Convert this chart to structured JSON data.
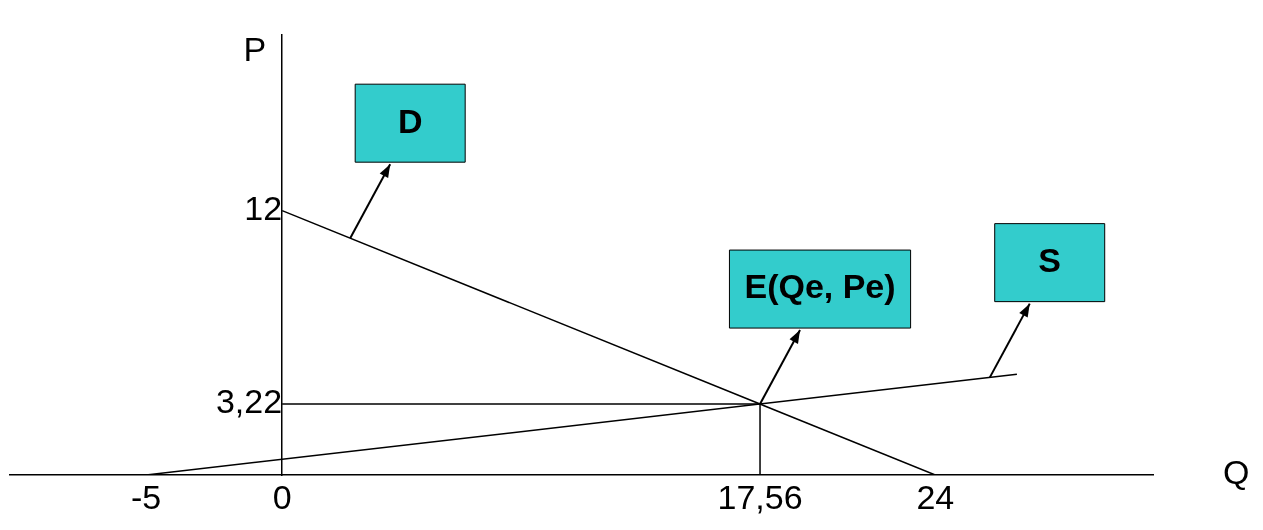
{
  "chart_data": {
    "type": "line",
    "xlabel": "Q",
    "ylabel": "P",
    "xlim": [
      -10,
      32
    ],
    "ylim": [
      0,
      20
    ],
    "xticks": [
      -5,
      0,
      {
        "value": 17.56,
        "label": "17,56"
      },
      24
    ],
    "yticks": [
      {
        "value": 3.22,
        "label": "3,22"
      },
      12
    ],
    "series": [
      {
        "color": "#000000",
        "x": [
          0,
          24
        ],
        "values": [
          12,
          0
        ]
      },
      {
        "color": "#000000",
        "x": [
          -5,
          27
        ],
        "values": [
          0,
          4.57
        ]
      },
      {
        "color": "#000000",
        "x": [
          0,
          17.56
        ],
        "values": [
          3.22,
          3.22
        ]
      },
      {
        "color": "#000000",
        "x": [
          17.56,
          17.56
        ],
        "values": [
          0,
          3.22
        ]
      }
    ],
    "annotations": [
      {
        "text": "D",
        "x": 2.5,
        "y": 10.75
      },
      {
        "text": "E(Qe, Pe)",
        "x": 17.56,
        "y": 3.22
      },
      {
        "text": "S",
        "x": 26,
        "y": 4.42
      }
    ],
    "grid": false,
    "legend": false,
    "marker": "none"
  }
}
